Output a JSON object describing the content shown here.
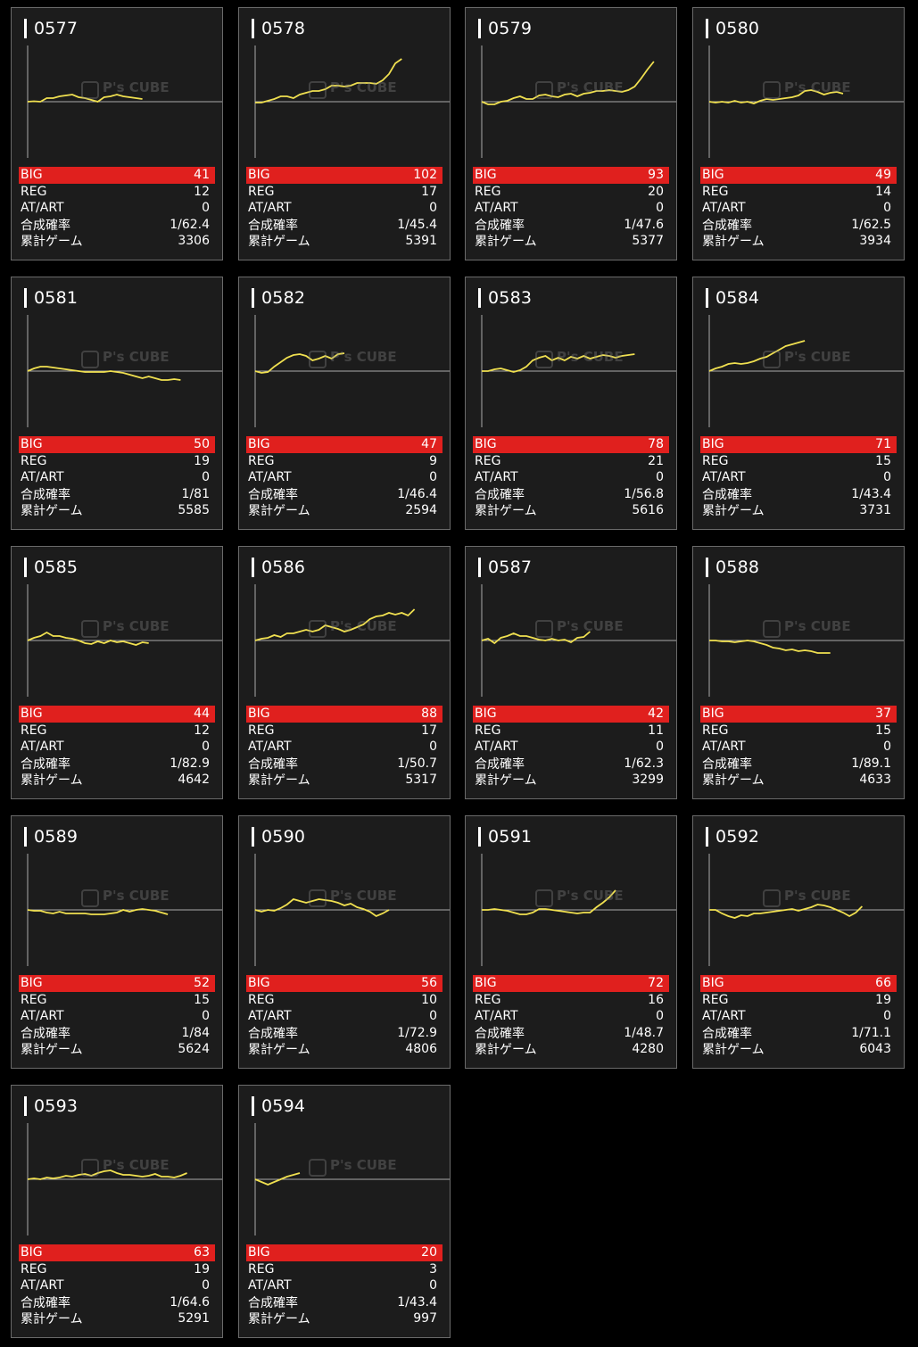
{
  "labels": {
    "big": "BIG",
    "reg": "REG",
    "at": "AT/ART",
    "prob": "合成確率",
    "games": "累計ゲーム"
  },
  "watermark": "P's CUBE",
  "colors": {
    "line": "#f0e050",
    "big_bg": "#e0201e",
    "card_bg": "#1c1c1c",
    "border": "#6a6a6a"
  },
  "chart_data": [
    {
      "type": "line",
      "id": "0577",
      "big": "41",
      "reg": "12",
      "at": "0",
      "prob": "1/62.4",
      "games": "3306",
      "points": [
        0,
        0.5,
        0,
        4,
        4,
        6,
        7,
        8,
        5,
        4,
        2,
        0,
        5,
        6,
        8,
        6,
        5,
        4,
        3
      ]
    },
    {
      "type": "line",
      "id": "0578",
      "big": "102",
      "reg": "17",
      "at": "0",
      "prob": "1/45.4",
      "games": "5391",
      "points": [
        -1,
        -1,
        1,
        3,
        6,
        6,
        4,
        8,
        10,
        12,
        12,
        14,
        18,
        18,
        17,
        18,
        21,
        21,
        21,
        20,
        24,
        31,
        43,
        48
      ]
    },
    {
      "type": "line",
      "id": "0579",
      "big": "93",
      "reg": "20",
      "at": "0",
      "prob": "1/47.6",
      "games": "5377",
      "points": [
        0,
        -3,
        -3,
        0,
        1,
        4,
        6,
        3,
        3,
        7,
        8,
        6,
        5,
        8,
        9,
        6,
        9,
        10,
        12,
        12,
        13,
        12,
        11,
        13,
        17,
        26,
        36,
        45
      ]
    },
    {
      "type": "line",
      "id": "0580",
      "big": "49",
      "reg": "14",
      "at": "0",
      "prob": "1/62.5",
      "games": "3934",
      "points": [
        0,
        -1,
        0,
        -1,
        1,
        -1,
        0,
        -2,
        1,
        3,
        2,
        3,
        4,
        5,
        7,
        12,
        13,
        11,
        8,
        10,
        11,
        9
      ]
    },
    {
      "type": "line",
      "id": "0581",
      "big": "50",
      "reg": "19",
      "at": "0",
      "prob": "1/81",
      "games": "5585",
      "points": [
        0,
        3,
        5,
        5,
        4,
        3,
        2,
        1,
        0,
        -1,
        -1,
        -1,
        -1,
        0,
        -1,
        -2,
        -4,
        -6,
        -8,
        -6,
        -8,
        -10,
        -10,
        -9,
        -10
      ]
    },
    {
      "type": "line",
      "id": "0582",
      "big": "47",
      "reg": "9",
      "at": "0",
      "prob": "1/46.4",
      "games": "2594",
      "points": [
        0,
        -2,
        -1,
        5,
        10,
        15,
        18,
        19,
        17,
        12,
        14,
        17,
        14,
        19,
        20
      ]
    },
    {
      "type": "line",
      "id": "0583",
      "big": "78",
      "reg": "21",
      "at": "0",
      "prob": "1/56.8",
      "games": "5616",
      "points": [
        0,
        0,
        2,
        3,
        1,
        -1,
        1,
        5,
        12,
        15,
        17,
        12,
        15,
        12,
        16,
        14,
        17,
        14,
        16,
        18,
        17,
        15,
        17,
        18,
        19
      ]
    },
    {
      "type": "line",
      "id": "0584",
      "big": "71",
      "reg": "15",
      "at": "0",
      "prob": "1/43.4",
      "games": "3731",
      "points": [
        0,
        3,
        5,
        8,
        9,
        8,
        9,
        11,
        14,
        16,
        20,
        24,
        28,
        30,
        32,
        34
      ]
    },
    {
      "type": "line",
      "id": "0585",
      "big": "44",
      "reg": "12",
      "at": "0",
      "prob": "1/82.9",
      "games": "4642",
      "points": [
        0,
        3,
        5,
        9,
        5,
        5,
        3,
        2,
        0,
        -3,
        -4,
        -1,
        -3,
        0,
        -2,
        -1,
        -3,
        -5,
        -2,
        -3
      ]
    },
    {
      "type": "line",
      "id": "0586",
      "big": "88",
      "reg": "17",
      "at": "0",
      "prob": "1/50.7",
      "games": "5317",
      "points": [
        0,
        2,
        3,
        6,
        4,
        8,
        8,
        10,
        12,
        10,
        12,
        17,
        15,
        13,
        10,
        12,
        15,
        18,
        24,
        27,
        28,
        31,
        29,
        31,
        28,
        35
      ]
    },
    {
      "type": "line",
      "id": "0587",
      "big": "42",
      "reg": "11",
      "at": "0",
      "prob": "1/62.3",
      "games": "3299",
      "points": [
        0,
        2,
        -3,
        3,
        5,
        8,
        5,
        5,
        3,
        1,
        0,
        2,
        0,
        1,
        -2,
        3,
        4,
        10
      ]
    },
    {
      "type": "line",
      "id": "0588",
      "big": "37",
      "reg": "15",
      "at": "0",
      "prob": "1/89.1",
      "games": "4633",
      "points": [
        0,
        0,
        -1,
        -1,
        -2,
        -1,
        0,
        -1,
        -3,
        -5,
        -8,
        -9,
        -11,
        -10,
        -12,
        -11,
        -12,
        -14,
        -14,
        -14
      ]
    },
    {
      "type": "line",
      "id": "0589",
      "big": "52",
      "reg": "15",
      "at": "0",
      "prob": "1/84",
      "games": "5624",
      "points": [
        0,
        -1,
        -1,
        -3,
        -4,
        -2,
        -4,
        -4,
        -4,
        -4,
        -5,
        -5,
        -5,
        -4,
        -3,
        0,
        -2,
        0,
        1,
        0,
        -1,
        -3,
        -5
      ]
    },
    {
      "type": "line",
      "id": "0590",
      "big": "56",
      "reg": "10",
      "at": "0",
      "prob": "1/72.9",
      "games": "4806",
      "points": [
        0,
        -2,
        0,
        -1,
        2,
        6,
        12,
        10,
        8,
        10,
        12,
        11,
        10,
        8,
        5,
        7,
        3,
        1,
        -2,
        -7,
        -4,
        0
      ]
    },
    {
      "type": "line",
      "id": "0591",
      "big": "72",
      "reg": "16",
      "at": "0",
      "prob": "1/48.7",
      "games": "4280",
      "points": [
        0,
        0,
        1,
        0,
        -1,
        -3,
        -5,
        -5,
        -3,
        1,
        1,
        0,
        -1,
        -2,
        -3,
        -4,
        -3,
        -3,
        3,
        8,
        14,
        22
      ]
    },
    {
      "type": "line",
      "id": "0592",
      "big": "66",
      "reg": "19",
      "at": "0",
      "prob": "1/71.1",
      "games": "6043",
      "points": [
        0,
        0,
        -4,
        -7,
        -9,
        -6,
        -7,
        -4,
        -4,
        -3,
        -2,
        -1,
        0,
        1,
        -1,
        1,
        3,
        6,
        5,
        3,
        0,
        -3,
        -7,
        -3,
        4
      ]
    },
    {
      "type": "line",
      "id": "0593",
      "big": "63",
      "reg": "19",
      "at": "0",
      "prob": "1/64.6",
      "games": "5291",
      "points": [
        0,
        1,
        0,
        2,
        1,
        2,
        4,
        3,
        5,
        6,
        4,
        7,
        9,
        10,
        7,
        5,
        5,
        4,
        3,
        4,
        6,
        3,
        3,
        2,
        4,
        7
      ]
    },
    {
      "type": "line",
      "id": "0594",
      "big": "20",
      "reg": "3",
      "at": "0",
      "prob": "1/43.4",
      "games": "997",
      "points": [
        0,
        -3,
        -6,
        -3,
        0,
        3,
        5,
        7
      ]
    }
  ]
}
